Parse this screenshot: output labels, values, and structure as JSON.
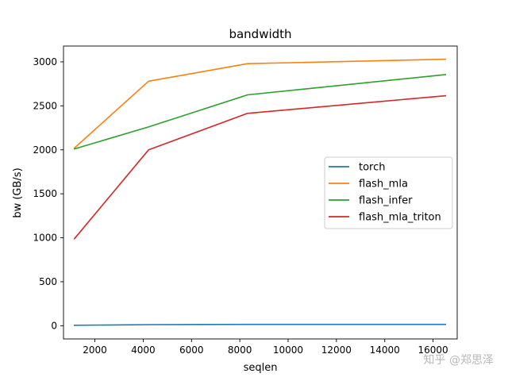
{
  "chart_data": {
    "type": "line",
    "title": "bandwidth",
    "xlabel": "seqlen",
    "ylabel": "bw (GB/s)",
    "xlim": [
      700,
      17000
    ],
    "ylim": [
      -150,
      3180
    ],
    "xticks": [
      2000,
      4000,
      6000,
      8000,
      10000,
      12000,
      14000,
      16000
    ],
    "yticks": [
      0,
      500,
      1000,
      1500,
      2000,
      2500,
      3000
    ],
    "x": [
      1152,
      4224,
      8320,
      16512
    ],
    "grid": false,
    "legend_position": "right",
    "series": [
      {
        "name": "torch",
        "color": "#1f77b4",
        "values": [
          5,
          12,
          15,
          15
        ]
      },
      {
        "name": "flash_mla",
        "color": "#ff7f0e",
        "values": [
          2020,
          2780,
          2980,
          3030
        ]
      },
      {
        "name": "flash_infer",
        "color": "#2ca02c",
        "values": [
          2010,
          2260,
          2625,
          2855
        ]
      },
      {
        "name": "flash_mla_triton",
        "color": "#d62728",
        "values": [
          990,
          2000,
          2415,
          2615
        ]
      }
    ]
  },
  "watermark": "知乎 @郑思泽"
}
